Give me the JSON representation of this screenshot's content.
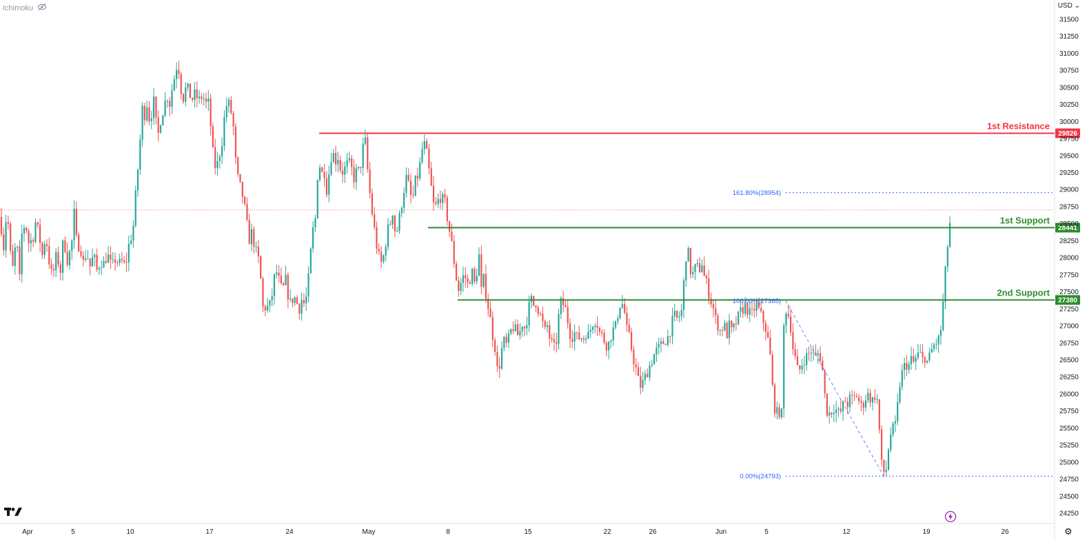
{
  "indicator": {
    "label": "Ichimoku",
    "icon": "eye-slash-icon"
  },
  "currency": {
    "label": "USD",
    "dropdown_icon": "chevron-down-icon"
  },
  "chart_data": {
    "type": "candlestick",
    "y_ticks": [
      31500,
      31250,
      31000,
      30750,
      30500,
      30250,
      30000,
      29750,
      29500,
      29250,
      29000,
      28750,
      28500,
      28250,
      28000,
      27750,
      27500,
      27250,
      27000,
      26750,
      26500,
      26250,
      26000,
      25750,
      25500,
      25250,
      25000,
      24750,
      24500,
      24250
    ],
    "ylim": [
      24150,
      31650
    ],
    "x_ticks": [
      "Apr",
      "5",
      "10",
      "17",
      "24",
      "May",
      "8",
      "15",
      "22",
      "26",
      "Jun",
      "5",
      "12",
      "19",
      "26"
    ],
    "last_price": 28700,
    "colors": {
      "up": "#26a69a",
      "down": "#ef5350",
      "resistance": "#f23645",
      "support": "#2e8b2e",
      "fib": "#2962ff"
    },
    "levels": [
      {
        "name": "1st Resistance",
        "value": 29826,
        "label": "29826",
        "type": "resistance"
      },
      {
        "name": "1st Support",
        "value": 28441,
        "label": "28441",
        "type": "support"
      },
      {
        "name": "2nd Support",
        "value": 27380,
        "label": "27380",
        "type": "support"
      }
    ],
    "fib_levels": [
      {
        "label": "161.80%(28954)",
        "value": 28954
      },
      {
        "label": "100.00%(27365)",
        "value": 27365
      },
      {
        "label": "0.00%(24793)",
        "value": 24793
      }
    ],
    "price_path": [
      [
        0,
        28600
      ],
      [
        6,
        28100
      ],
      [
        10,
        28800
      ],
      [
        14,
        28150
      ],
      [
        18,
        27800
      ],
      [
        24,
        28300
      ],
      [
        28,
        27600
      ],
      [
        32,
        28400
      ],
      [
        37,
        28500
      ],
      [
        42,
        28200
      ],
      [
        48,
        28300
      ],
      [
        52,
        28550
      ],
      [
        58,
        28250
      ],
      [
        62,
        28000
      ],
      [
        66,
        28350
      ],
      [
        72,
        27900
      ],
      [
        76,
        27700
      ],
      [
        82,
        28050
      ],
      [
        88,
        27800
      ],
      [
        92,
        28300
      ],
      [
        98,
        27950
      ],
      [
        104,
        28200
      ],
      [
        108,
        28700
      ],
      [
        112,
        28100
      ],
      [
        116,
        28250
      ],
      [
        120,
        27900
      ],
      [
        126,
        28100
      ],
      [
        130,
        27850
      ],
      [
        136,
        28050
      ],
      [
        140,
        27800
      ],
      [
        146,
        27950
      ],
      [
        150,
        27900
      ],
      [
        156,
        28050
      ],
      [
        162,
        27850
      ],
      [
        168,
        28000
      ],
      [
        172,
        27900
      ],
      [
        178,
        27950
      ],
      [
        182,
        27850
      ],
      [
        186,
        28150
      ],
      [
        190,
        28300
      ],
      [
        194,
        28500
      ],
      [
        198,
        29100
      ],
      [
        202,
        29500
      ],
      [
        206,
        30200
      ],
      [
        210,
        30100
      ],
      [
        214,
        30300
      ],
      [
        218,
        29900
      ],
      [
        222,
        30400
      ],
      [
        226,
        30000
      ],
      [
        230,
        29800
      ],
      [
        234,
        30100
      ],
      [
        238,
        30200
      ],
      [
        242,
        30400
      ],
      [
        246,
        30250
      ],
      [
        250,
        30500
      ],
      [
        254,
        30700
      ],
      [
        258,
        30900
      ],
      [
        262,
        30500
      ],
      [
        266,
        30350
      ],
      [
        270,
        30500
      ],
      [
        274,
        30450
      ],
      [
        278,
        30300
      ],
      [
        282,
        30400
      ],
      [
        286,
        30350
      ],
      [
        290,
        30300
      ],
      [
        294,
        30400
      ],
      [
        298,
        30250
      ],
      [
        302,
        30300
      ],
      [
        306,
        29900
      ],
      [
        310,
        29400
      ],
      [
        314,
        29300
      ],
      [
        318,
        29500
      ],
      [
        322,
        29700
      ],
      [
        326,
        30100
      ],
      [
        330,
        30300
      ],
      [
        334,
        30200
      ],
      [
        338,
        30000
      ],
      [
        342,
        29400
      ],
      [
        346,
        29100
      ],
      [
        350,
        29000
      ],
      [
        354,
        28800
      ],
      [
        358,
        28500
      ],
      [
        362,
        28250
      ],
      [
        366,
        28400
      ],
      [
        370,
        28100
      ],
      [
        374,
        28050
      ],
      [
        378,
        27700
      ],
      [
        382,
        27200
      ],
      [
        386,
        27300
      ],
      [
        390,
        27250
      ],
      [
        394,
        27400
      ],
      [
        398,
        27700
      ],
      [
        402,
        27800
      ],
      [
        406,
        27600
      ],
      [
        410,
        27500
      ],
      [
        414,
        27700
      ],
      [
        418,
        27450
      ],
      [
        422,
        27300
      ],
      [
        426,
        27450
      ],
      [
        430,
        27350
      ],
      [
        434,
        27250
      ],
      [
        438,
        27400
      ],
      [
        442,
        27300
      ],
      [
        446,
        27500
      ],
      [
        450,
        28000
      ],
      [
        454,
        28400
      ],
      [
        458,
        28600
      ],
      [
        462,
        29500
      ],
      [
        466,
        29200
      ],
      [
        470,
        29300
      ],
      [
        474,
        29000
      ],
      [
        478,
        29300
      ],
      [
        482,
        29600
      ],
      [
        486,
        29400
      ],
      [
        490,
        29500
      ],
      [
        494,
        29300
      ],
      [
        498,
        29250
      ],
      [
        502,
        29350
      ],
      [
        506,
        29400
      ],
      [
        510,
        29300
      ],
      [
        514,
        29150
      ],
      [
        518,
        29300
      ],
      [
        522,
        29250
      ],
      [
        526,
        29600
      ],
      [
        530,
        29700
      ],
      [
        534,
        29200
      ],
      [
        538,
        28800
      ],
      [
        542,
        28500
      ],
      [
        546,
        28200
      ],
      [
        550,
        28000
      ],
      [
        554,
        27900
      ],
      [
        558,
        28100
      ],
      [
        562,
        28400
      ],
      [
        566,
        28500
      ],
      [
        570,
        28700
      ],
      [
        574,
        28300
      ],
      [
        578,
        28500
      ],
      [
        582,
        28750
      ],
      [
        586,
        29000
      ],
      [
        590,
        29200
      ],
      [
        594,
        29000
      ],
      [
        598,
        28800
      ],
      [
        602,
        29100
      ],
      [
        606,
        29200
      ],
      [
        610,
        29400
      ],
      [
        614,
        29700
      ],
      [
        618,
        29600
      ],
      [
        622,
        29300
      ],
      [
        626,
        29000
      ],
      [
        630,
        28700
      ],
      [
        634,
        28800
      ],
      [
        638,
        28900
      ],
      [
        642,
        28850
      ],
      [
        646,
        28800
      ],
      [
        650,
        28500
      ],
      [
        654,
        28300
      ],
      [
        658,
        28000
      ],
      [
        662,
        27700
      ],
      [
        666,
        27500
      ],
      [
        670,
        27700
      ],
      [
        674,
        27750
      ],
      [
        678,
        27600
      ],
      [
        682,
        27700
      ],
      [
        686,
        27800
      ],
      [
        690,
        27500
      ],
      [
        694,
        28200
      ],
      [
        698,
        27500
      ],
      [
        702,
        27700
      ],
      [
        706,
        27400
      ],
      [
        710,
        27200
      ],
      [
        714,
        26900
      ],
      [
        718,
        26700
      ],
      [
        722,
        26300
      ],
      [
        726,
        26500
      ],
      [
        730,
        26800
      ],
      [
        734,
        26700
      ],
      [
        738,
        26800
      ],
      [
        742,
        26950
      ],
      [
        746,
        27000
      ],
      [
        750,
        26850
      ],
      [
        754,
        26900
      ],
      [
        758,
        27050
      ],
      [
        762,
        26950
      ],
      [
        766,
        27200
      ],
      [
        770,
        27400
      ],
      [
        774,
        27300
      ],
      [
        778,
        27350
      ],
      [
        782,
        27200
      ],
      [
        786,
        27100
      ],
      [
        790,
        26900
      ],
      [
        794,
        27000
      ],
      [
        798,
        26800
      ],
      [
        802,
        26700
      ],
      [
        806,
        26650
      ],
      [
        810,
        27100
      ],
      [
        814,
        27350
      ],
      [
        818,
        27300
      ],
      [
        822,
        27200
      ],
      [
        826,
        26900
      ],
      [
        830,
        26850
      ],
      [
        834,
        26900
      ],
      [
        838,
        26800
      ],
      [
        842,
        26850
      ],
      [
        846,
        26800
      ],
      [
        850,
        26900
      ],
      [
        854,
        26850
      ],
      [
        858,
        27000
      ],
      [
        862,
        27100
      ],
      [
        866,
        27050
      ],
      [
        870,
        26900
      ],
      [
        874,
        26850
      ],
      [
        878,
        26750
      ],
      [
        882,
        26700
      ],
      [
        886,
        26850
      ],
      [
        890,
        26950
      ],
      [
        894,
        27000
      ],
      [
        898,
        27300
      ],
      [
        902,
        27350
      ],
      [
        906,
        27200
      ],
      [
        910,
        26900
      ],
      [
        914,
        26800
      ],
      [
        918,
        26550
      ],
      [
        922,
        26400
      ],
      [
        926,
        26200
      ],
      [
        930,
        26100
      ],
      [
        934,
        26200
      ],
      [
        938,
        26300
      ],
      [
        942,
        26400
      ],
      [
        946,
        26500
      ],
      [
        950,
        26600
      ],
      [
        954,
        26650
      ],
      [
        958,
        26700
      ],
      [
        962,
        26750
      ],
      [
        966,
        26800
      ],
      [
        970,
        26850
      ],
      [
        974,
        27000
      ],
      [
        978,
        27150
      ],
      [
        982,
        27100
      ],
      [
        986,
        27150
      ],
      [
        990,
        27250
      ],
      [
        994,
        28000
      ],
      [
        998,
        28100
      ],
      [
        1002,
        27800
      ],
      [
        1006,
        27750
      ],
      [
        1010,
        27900
      ],
      [
        1014,
        27800
      ],
      [
        1018,
        27950
      ],
      [
        1022,
        27700
      ],
      [
        1026,
        27600
      ],
      [
        1030,
        27400
      ],
      [
        1034,
        27300
      ],
      [
        1038,
        27100
      ],
      [
        1042,
        27000
      ],
      [
        1046,
        26900
      ],
      [
        1050,
        27050
      ],
      [
        1054,
        26850
      ],
      [
        1058,
        27000
      ],
      [
        1062,
        26900
      ],
      [
        1066,
        27000
      ],
      [
        1070,
        27100
      ],
      [
        1074,
        27200
      ],
      [
        1078,
        27250
      ],
      [
        1082,
        27300
      ],
      [
        1086,
        27200
      ],
      [
        1090,
        27150
      ],
      [
        1094,
        27250
      ],
      [
        1098,
        27300
      ],
      [
        1102,
        27200
      ],
      [
        1106,
        27100
      ],
      [
        1110,
        27000
      ],
      [
        1114,
        26800
      ],
      [
        1118,
        26500
      ],
      [
        1122,
        25900
      ],
      [
        1126,
        25700
      ],
      [
        1130,
        25750
      ],
      [
        1134,
        25700
      ],
      [
        1138,
        27300
      ],
      [
        1142,
        27200
      ],
      [
        1146,
        27100
      ],
      [
        1150,
        26700
      ],
      [
        1154,
        26500
      ],
      [
        1158,
        26300
      ],
      [
        1162,
        26400
      ],
      [
        1166,
        26500
      ],
      [
        1170,
        26550
      ],
      [
        1174,
        26600
      ],
      [
        1178,
        26650
      ],
      [
        1182,
        26500
      ],
      [
        1186,
        26600
      ],
      [
        1190,
        26550
      ],
      [
        1194,
        26300
      ],
      [
        1198,
        25800
      ],
      [
        1202,
        25700
      ],
      [
        1206,
        25750
      ],
      [
        1210,
        25800
      ],
      [
        1214,
        25750
      ],
      [
        1218,
        25700
      ],
      [
        1222,
        25800
      ],
      [
        1226,
        25900
      ],
      [
        1230,
        25850
      ],
      [
        1234,
        25950
      ],
      [
        1238,
        25900
      ],
      [
        1242,
        26000
      ],
      [
        1246,
        25900
      ],
      [
        1250,
        25800
      ],
      [
        1254,
        25900
      ],
      [
        1258,
        26000
      ],
      [
        1262,
        25950
      ],
      [
        1266,
        25900
      ],
      [
        1270,
        26000
      ],
      [
        1274,
        25850
      ],
      [
        1278,
        25000
      ],
      [
        1282,
        24850
      ],
      [
        1286,
        24900
      ],
      [
        1290,
        25300
      ],
      [
        1294,
        25500
      ],
      [
        1298,
        25450
      ],
      [
        1302,
        25800
      ],
      [
        1306,
        26200
      ],
      [
        1310,
        26350
      ],
      [
        1314,
        26450
      ],
      [
        1318,
        26400
      ],
      [
        1322,
        26500
      ],
      [
        1326,
        26450
      ],
      [
        1330,
        26550
      ],
      [
        1334,
        26600
      ],
      [
        1338,
        26500
      ],
      [
        1342,
        26550
      ],
      [
        1346,
        26450
      ],
      [
        1350,
        26600
      ],
      [
        1354,
        26700
      ],
      [
        1358,
        26750
      ],
      [
        1362,
        26800
      ],
      [
        1366,
        27000
      ],
      [
        1370,
        27600
      ],
      [
        1374,
        28100
      ],
      [
        1378,
        28500
      ],
      [
        1382,
        28700
      ]
    ]
  }
}
